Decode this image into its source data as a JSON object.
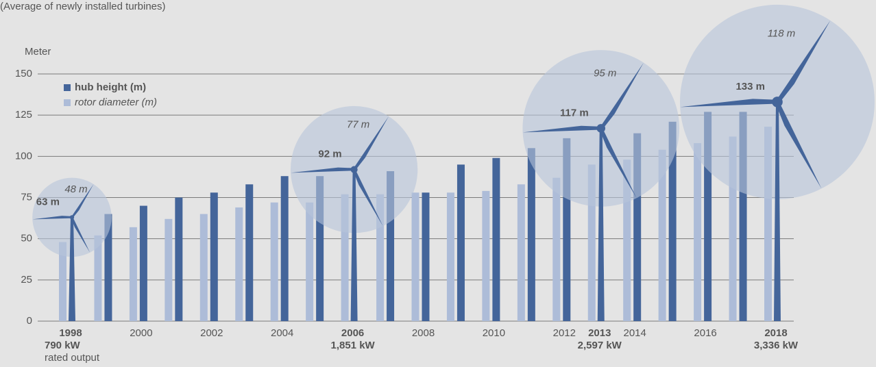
{
  "chart_data": {
    "type": "bar",
    "subtitle": "(Average of newly installed turbines)",
    "y_label": "Meter",
    "categories": [
      "1998",
      null,
      "2000",
      null,
      "2002",
      null,
      "2004",
      null,
      "2006",
      null,
      "2008",
      null,
      "2010",
      null,
      "2012",
      "2013",
      "2014",
      null,
      "2016",
      null,
      "2018"
    ],
    "highlight_categories": [
      true,
      false,
      false,
      false,
      false,
      false,
      false,
      false,
      true,
      false,
      false,
      false,
      false,
      false,
      false,
      true,
      false,
      false,
      false,
      false,
      true
    ],
    "series": [
      {
        "name": "hub height (m)",
        "color": "#44659a",
        "values": [
          63,
          65,
          70,
          75,
          78,
          83,
          88,
          88,
          92,
          91,
          78,
          95,
          99,
          105,
          111,
          117,
          114,
          121,
          127,
          127,
          133
        ],
        "value_labels": [
          "63 m",
          null,
          null,
          null,
          null,
          null,
          null,
          null,
          "92 m",
          null,
          null,
          null,
          null,
          null,
          null,
          "117 m",
          null,
          null,
          null,
          null,
          "133 m"
        ]
      },
      {
        "name": "rotor diameter (m)",
        "color": "#adbcd8",
        "values": [
          48,
          52,
          57,
          62,
          65,
          69,
          72,
          72,
          77,
          77,
          78,
          78,
          79,
          83,
          87,
          95,
          98,
          104,
          108,
          112,
          118
        ],
        "value_labels": [
          "48 m",
          null,
          null,
          null,
          null,
          null,
          null,
          null,
          "77 m",
          null,
          null,
          null,
          null,
          null,
          null,
          "95 m",
          null,
          null,
          null,
          null,
          "118 m"
        ]
      }
    ],
    "ratings": [
      "790 kW",
      null,
      null,
      null,
      null,
      null,
      null,
      null,
      "1,851 kW",
      null,
      null,
      null,
      null,
      null,
      null,
      "2,597 kW",
      null,
      null,
      null,
      null,
      "3,336 kW"
    ],
    "rating_label": "rated output",
    "ylim": [
      0,
      150
    ],
    "yticks": [
      0,
      25,
      50,
      75,
      100,
      125,
      150
    ],
    "grid": true
  }
}
